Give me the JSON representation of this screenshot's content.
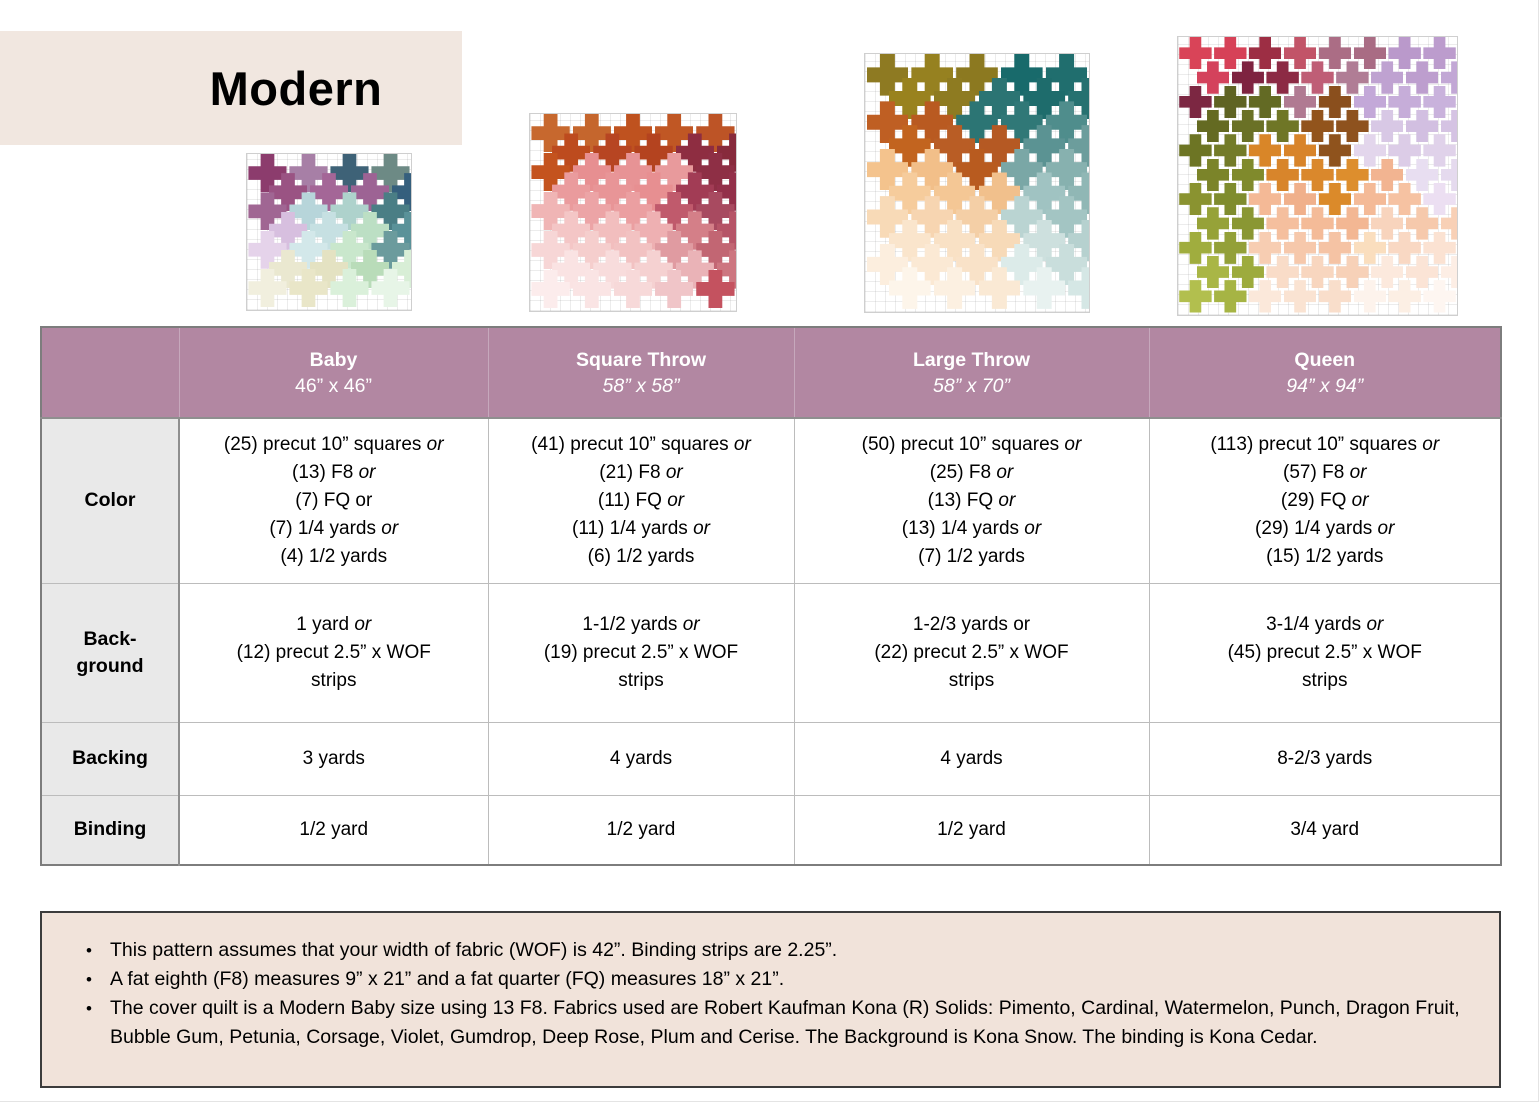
{
  "page": {
    "title": "Modern"
  },
  "colors": {
    "title_bg": "#f1e7e0",
    "header_bg": "#b287a2",
    "row_label_bg": "#e9e9e9",
    "notes_bg": "#f1e3da",
    "table_border": "#7d7d7d"
  },
  "quilts": [
    {
      "id": "baby",
      "name": "baby-quilt-preview",
      "cols": 4,
      "rows": [
        [
          "#8c3c6d",
          "#a77fa6",
          "#3e6277",
          "#6d8a85"
        ],
        [
          "#9a5383",
          "#a46697",
          "#9d6394",
          "#355f7d"
        ],
        [
          "#a06693",
          "#b7d5da",
          "#aed2cc",
          "#4a7e85"
        ],
        [
          "#d7bfdf",
          "#c6e0e2",
          "#bcdfc4",
          "#5a9299"
        ],
        [
          "#e5d3ea",
          "#d3e8ea",
          "#c9e7cc",
          "#6b9b9d"
        ],
        [
          "#eae8d0",
          "#e4e2c2",
          "#b9dcb9",
          "#d8eed6"
        ],
        [
          "#f1efde",
          "#e9e6c8",
          "#daf0da",
          "#e7f5e7"
        ]
      ]
    },
    {
      "id": "square-throw",
      "name": "square-throw-quilt-preview",
      "cols": 5,
      "rows": [
        [
          "#c7682e",
          "#c5662d",
          "#bf521f",
          "#c05724",
          "#bd5426"
        ],
        [
          "#bd4b1e",
          "#b74522",
          "#b4431f",
          "#8e2d41",
          "#872a3c"
        ],
        [
          "#c4531e",
          "#e78f91",
          "#e79395",
          "#e89a9c",
          "#8e2f45"
        ],
        [
          "#ea9b9d",
          "#e89597",
          "#e78f91",
          "#a23c55",
          "#93304a"
        ],
        [
          "#f0b5b5",
          "#eca4a6",
          "#eb9fa1",
          "#c05a6c",
          "#a84a60"
        ],
        [
          "#f4c6c6",
          "#f2bebe",
          "#eeb0b2",
          "#d47f88",
          "#b65467"
        ],
        [
          "#f7d6d6",
          "#f5cecd",
          "#f2c2c2",
          "#e09ba1",
          "#c26673"
        ],
        [
          "#fae3e3",
          "#f8dcdc",
          "#f5d1d1",
          "#eab3b7",
          "#cd7680"
        ],
        [
          "#fcecec",
          "#fae4e4",
          "#f7d9d9",
          "#f0c5c8",
          "#c4525f"
        ]
      ]
    },
    {
      "id": "large-throw",
      "name": "large-throw-quilt-preview",
      "cols": 5,
      "rows": [
        [
          "#8e7a22",
          "#968120",
          "#8c7920",
          "#186a6b",
          "#206e6e"
        ],
        [
          "#99821e",
          "#8e7b21",
          "#2b7473",
          "#1e6c6c",
          "#267170"
        ],
        [
          "#bf5f23",
          "#b95a21",
          "#2c7574",
          "#307877",
          "#4f8d8c"
        ],
        [
          "#c2641f",
          "#b95d25",
          "#b55923",
          "#5b9393",
          "#6c9d9c"
        ],
        [
          "#f4c38d",
          "#f2bf89",
          "#b85b1f",
          "#7aa7a6",
          "#87b1af"
        ],
        [
          "#f6cc9c",
          "#f4c795",
          "#f1c08c",
          "#a0c3c2",
          "#90b7b5"
        ],
        [
          "#f8dab7",
          "#f7d5b1",
          "#f4cfa6",
          "#bad4d2",
          "#a3c5c3"
        ],
        [
          "#fae5cc",
          "#f9e1c5",
          "#f7dab8",
          "#cde0de",
          "#b6d1cf"
        ],
        [
          "#fceede",
          "#fbe9d4",
          "#f9e2c8",
          "#dcebe9",
          "#c9dedc"
        ],
        [
          "#fdf5ea",
          "#fcf0e1",
          "#fae9d4",
          "#e8f2f0",
          "#d5e7e5"
        ]
      ]
    },
    {
      "id": "queen",
      "name": "queen-quilt-preview",
      "cols": 8,
      "rows": [
        [
          "#d94458",
          "#d64157",
          "#9d2e44",
          "#c25468",
          "#ab6d85",
          "#a96c84",
          "#ba99cb",
          "#bc9ccd"
        ],
        [
          "#d4425c",
          "#7e2340",
          "#8c2a44",
          "#bf5e76",
          "#b07d95",
          "#bfa2d1",
          "#bd9ece",
          "#c2a7d5"
        ],
        [
          "#7c2742",
          "#5f6323",
          "#636a24",
          "#b07a92",
          "#8a4f1d",
          "#c3a8d8",
          "#c6add9",
          "#c9b2dc"
        ],
        [
          "#646a22",
          "#6a7126",
          "#6f7626",
          "#92541c",
          "#8e521e",
          "#d8c8e5",
          "#d2bfe1",
          "#d5c3e3"
        ],
        [
          "#6d7524",
          "#737b28",
          "#d98628",
          "#d8842a",
          "#8f531d",
          "#e3d6ec",
          "#dccce7",
          "#e0d2ea"
        ],
        [
          "#7b8429",
          "#808a2c",
          "#d8852b",
          "#da882c",
          "#dd8e2d",
          "#f2b491",
          "#e8def1",
          "#e5daee"
        ],
        [
          "#8a9330",
          "#7f8c2e",
          "#f4b996",
          "#f0b08b",
          "#db8a2a",
          "#f4ba97",
          "#f6c2a2",
          "#ecdff2"
        ],
        [
          "#96a238",
          "#8a9733",
          "#f5bf9e",
          "#f4bb98",
          "#f3b793",
          "#f8d4bd",
          "#f6c9ac",
          "#f8d0b6"
        ],
        [
          "#a0ad3e",
          "#93a038",
          "#f7cdb2",
          "#f6c8ab",
          "#f5c3a4",
          "#fadebe",
          "#f9d8c3",
          "#fbe2d2"
        ],
        [
          "#a9b646",
          "#9dab3d",
          "#f9dcc8",
          "#f8d6bf",
          "#f7d1b8",
          "#fce9dd",
          "#fbe4d6",
          "#fdeee5"
        ],
        [
          "#b2bf4e",
          "#a6b444",
          "#fbe8da",
          "#fae3d2",
          "#f9decb",
          "#fdf3ec",
          "#fcefe4",
          "#fef6f1"
        ]
      ]
    }
  ],
  "table": {
    "columns": [
      {
        "id": "baby",
        "label": "Baby",
        "size": "46” x 46”",
        "size_italic": false
      },
      {
        "id": "square-throw",
        "label": "Square Throw",
        "size": "58” x 58”",
        "size_italic": true
      },
      {
        "id": "large-throw",
        "label": "Large Throw",
        "size": "58” x 70”",
        "size_italic": true
      },
      {
        "id": "queen",
        "label": "Queen",
        "size": "94” x 94”",
        "size_italic": true
      }
    ],
    "rows": [
      {
        "id": "color",
        "label_lines": [
          "Color"
        ],
        "cells": [
          [
            "(25) precut 10” squares *or*",
            "(13) F8 *or*",
            "(7) FQ or",
            "(7) 1/4 yards *or*",
            "(4) 1/2 yards"
          ],
          [
            "(41) precut 10” squares *or*",
            "(21) F8 *or*",
            "(11) FQ *or*",
            "(11) 1/4 yards *or*",
            "(6) 1/2 yards"
          ],
          [
            "(50) precut 10” squares *or*",
            "(25) F8 *or*",
            "(13) FQ *or*",
            "(13) 1/4 yards *or*",
            "(7) 1/2 yards"
          ],
          [
            "(113) precut 10” squares *or*",
            "(57) F8 *or*",
            "(29) FQ *or*",
            "(29) 1/4 yards *or*",
            "(15) 1/2 yards"
          ]
        ]
      },
      {
        "id": "background",
        "label_lines": [
          "Back-",
          "ground"
        ],
        "cells": [
          [
            "1 yard *or*",
            "(12) precut 2.5” x WOF",
            "strips"
          ],
          [
            "1-1/2 yards *or*",
            "(19) precut 2.5” x WOF",
            "strips"
          ],
          [
            "1-2/3 yards or",
            "(22) precut 2.5” x WOF",
            "strips"
          ],
          [
            "3-1/4 yards *or*",
            "(45) precut 2.5” x WOF",
            "strips"
          ]
        ]
      },
      {
        "id": "backing",
        "label_lines": [
          "Backing"
        ],
        "cells": [
          [
            "3 yards"
          ],
          [
            "4 yards"
          ],
          [
            "4 yards"
          ],
          [
            "8-2/3 yards"
          ]
        ]
      },
      {
        "id": "binding",
        "label_lines": [
          "Binding"
        ],
        "cells": [
          [
            "1/2 yard"
          ],
          [
            "1/2 yard"
          ],
          [
            "1/2 yard"
          ],
          [
            "3/4 yard"
          ]
        ]
      }
    ]
  },
  "notes": {
    "items": [
      "This pattern assumes that your width of fabric (WOF) is 42”. Binding strips are 2.25”.",
      "A fat eighth (F8) measures 9” x 21” and a fat quarter (FQ) measures 18” x 21”.",
      "The cover quilt is a Modern Baby size using 13 F8. Fabrics used are Robert Kaufman Kona (R) Solids: Pimento, Cardinal, Watermelon, Punch, Dragon Fruit, Bubble Gum, Petunia, Corsage, Violet, Gumdrop, Deep Rose, Plum and Cerise. The Background is Kona Snow. The binding is Kona Cedar."
    ]
  }
}
